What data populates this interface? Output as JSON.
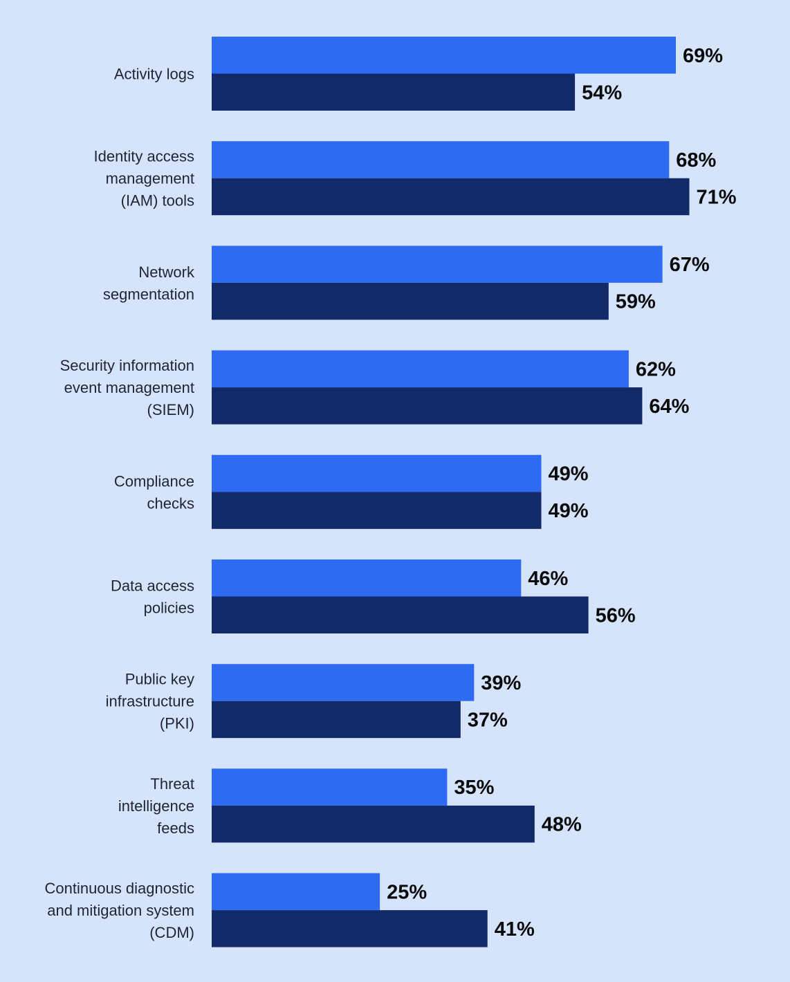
{
  "colors": {
    "background": "#d6e4fb",
    "series_a": "#2f6bf2",
    "series_b": "#132a69",
    "label_text": "#1f2433",
    "value_text": "#0a0a0a"
  },
  "chart_data": {
    "type": "bar",
    "orientation": "horizontal",
    "title": "",
    "xlabel": "",
    "ylabel": "",
    "xlim": [
      0,
      100
    ],
    "grid": false,
    "legend": "none",
    "value_suffix": "%",
    "categories": [
      [
        "Activity logs"
      ],
      [
        "Identity access",
        "management",
        "(IAM) tools"
      ],
      [
        "Network",
        "segmentation"
      ],
      [
        "Security information",
        "event management",
        "(SIEM)"
      ],
      [
        "Compliance",
        "checks"
      ],
      [
        "Data access",
        "policies"
      ],
      [
        "Public key",
        "infrastructure",
        "(PKI)"
      ],
      [
        "Threat",
        "intelligence",
        "feeds"
      ],
      [
        "Continuous diagnostic",
        "and mitigation system",
        "(CDM)"
      ]
    ],
    "series": [
      {
        "values": [
          69,
          68,
          67,
          62,
          49,
          46,
          39,
          35,
          25
        ]
      },
      {
        "values": [
          54,
          71,
          59,
          64,
          49,
          56,
          37,
          48,
          41
        ]
      }
    ]
  }
}
